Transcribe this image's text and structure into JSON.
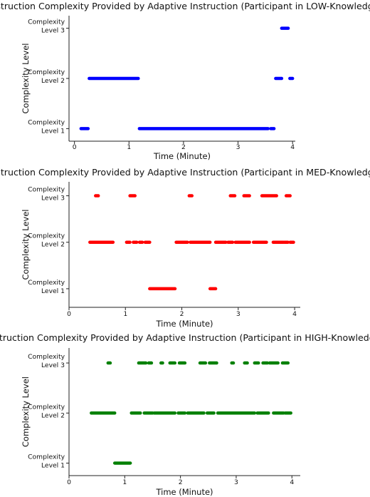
{
  "chart_data": [
    {
      "type": "scatter",
      "title": "Instruction Complexity Provided by Adaptive Instruction (Participant in LOW-Knowledge)",
      "xlabel": "Time (Minute)",
      "ylabel": "Complexity Level",
      "xlim": [
        -0.1,
        4.05
      ],
      "ylim": [
        0.75,
        3.25
      ],
      "xticks": [
        "0",
        "1",
        "2",
        "3",
        "4"
      ],
      "yticks": [
        {
          "value": 1,
          "line1": "Complexity",
          "line2": "Level 1"
        },
        {
          "value": 2,
          "line1": "Complexity",
          "line2": "Level 2"
        },
        {
          "value": 3,
          "line1": "Complexity",
          "line2": "Level 3"
        }
      ],
      "color": "#0000ff",
      "grid": false,
      "series": [
        {
          "level": 1,
          "segments": [
            [
              0.12,
              0.25
            ],
            [
              1.19,
              3.55
            ],
            [
              3.6,
              3.66
            ]
          ]
        },
        {
          "level": 2,
          "segments": [
            [
              0.27,
              1.17
            ],
            [
              3.69,
              3.8
            ],
            [
              3.95,
              4.0
            ]
          ]
        },
        {
          "level": 3,
          "segments": [
            [
              3.8,
              3.92
            ]
          ]
        }
      ]
    },
    {
      "type": "scatter",
      "title": "Instruction Complexity Provided by Adaptive Instruction (Participant in MED-Knowledge)",
      "xlabel": "Time (Minute)",
      "ylabel": "Complexity Level",
      "xlim": [
        0,
        4.1
      ],
      "ylim": [
        0.6,
        3.3
      ],
      "xticks": [
        "0",
        "1",
        "2",
        "3",
        "4"
      ],
      "yticks": [
        {
          "value": 1,
          "line1": "Complexity",
          "line2": "Level 1"
        },
        {
          "value": 2,
          "line1": "Complexity",
          "line2": "Level 2"
        },
        {
          "value": 3,
          "line1": "Complexity",
          "line2": "Level 3"
        }
      ],
      "color": "#ff0000",
      "grid": false,
      "series": [
        {
          "level": 1,
          "segments": [
            [
              1.43,
              1.88
            ],
            [
              2.5,
              2.6
            ]
          ]
        },
        {
          "level": 2,
          "segments": [
            [
              0.37,
              0.78
            ],
            [
              1.02,
              1.08
            ],
            [
              1.14,
              1.2
            ],
            [
              1.25,
              1.3
            ],
            [
              1.35,
              1.43
            ],
            [
              1.9,
              2.1
            ],
            [
              2.15,
              2.5
            ],
            [
              2.6,
              2.78
            ],
            [
              2.82,
              2.9
            ],
            [
              2.95,
              3.2
            ],
            [
              3.27,
              3.5
            ],
            [
              3.62,
              3.8
            ],
            [
              3.82,
              3.88
            ],
            [
              3.92,
              3.98
            ]
          ]
        },
        {
          "level": 3,
          "segments": [
            [
              0.47,
              0.52
            ],
            [
              1.08,
              1.17
            ],
            [
              2.13,
              2.18
            ],
            [
              2.86,
              2.94
            ],
            [
              3.1,
              3.2
            ],
            [
              3.42,
              3.68
            ],
            [
              3.85,
              3.92
            ]
          ]
        }
      ]
    },
    {
      "type": "scatter",
      "title": "Instruction Complexity Provided by Adaptive Instruction (Participant in HIGH-Knowledge)",
      "xlabel": "Time (Minute)",
      "ylabel": "Complexity Level",
      "xlim": [
        0,
        4.15
      ],
      "ylim": [
        0.75,
        3.3
      ],
      "xticks": [
        "0",
        "1",
        "2",
        "3",
        "4"
      ],
      "yticks": [
        {
          "value": 1,
          "line1": "Complexity",
          "line2": "Level 1"
        },
        {
          "value": 2,
          "line1": "Complexity",
          "line2": "Level 2"
        },
        {
          "value": 3,
          "line1": "Complexity",
          "line2": "Level 3"
        }
      ],
      "color": "#008000",
      "grid": false,
      "series": [
        {
          "level": 1,
          "segments": [
            [
              0.82,
              1.1
            ]
          ]
        },
        {
          "level": 2,
          "segments": [
            [
              0.4,
              0.82
            ],
            [
              1.12,
              1.28
            ],
            [
              1.35,
              1.5
            ],
            [
              1.53,
              1.9
            ],
            [
              1.96,
              2.08
            ],
            [
              2.13,
              2.42
            ],
            [
              2.48,
              2.6
            ],
            [
              2.67,
              3.33
            ],
            [
              3.38,
              3.58
            ],
            [
              3.67,
              3.85
            ],
            [
              3.88,
              3.98
            ]
          ]
        },
        {
          "level": 3,
          "segments": [
            [
              0.7,
              0.74
            ],
            [
              1.25,
              1.38
            ],
            [
              1.43,
              1.48
            ],
            [
              1.65,
              1.68
            ],
            [
              1.81,
              1.9
            ],
            [
              1.98,
              2.08
            ],
            [
              2.35,
              2.45
            ],
            [
              2.52,
              2.65
            ],
            [
              2.92,
              2.95
            ],
            [
              3.15,
              3.2
            ],
            [
              3.33,
              3.4
            ],
            [
              3.48,
              3.56
            ],
            [
              3.6,
              3.75
            ],
            [
              3.83,
              3.93
            ]
          ]
        }
      ]
    }
  ]
}
